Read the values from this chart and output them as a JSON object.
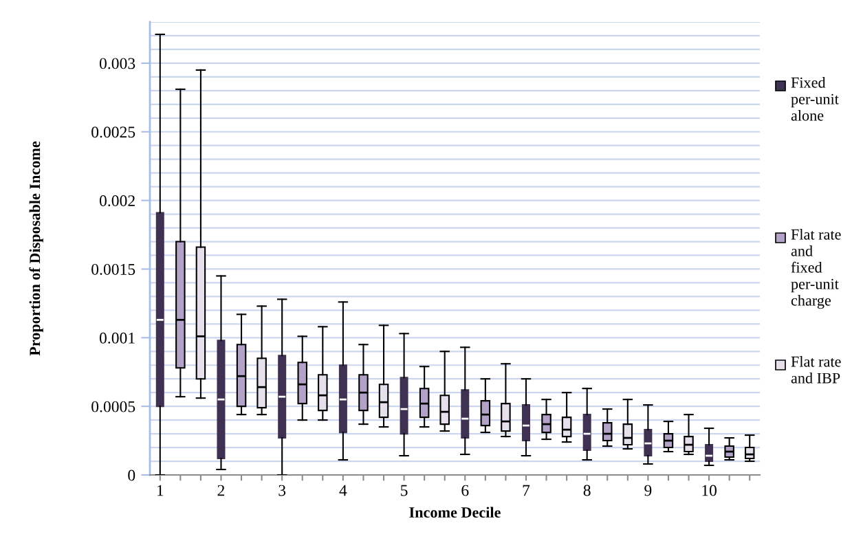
{
  "chart_data": {
    "type": "box",
    "xlabel": "Income Decile",
    "ylabel": "Proportion of Disposable Income",
    "categories": [
      "1",
      null,
      null,
      "2",
      null,
      null,
      "3",
      null,
      null,
      "4",
      null,
      null,
      "5",
      null,
      null,
      "6",
      null,
      null,
      "7",
      null,
      null,
      "8",
      null,
      null,
      "9",
      null,
      null,
      "10",
      null,
      null
    ],
    "series": [
      {
        "name": "Fixed per-unit alone",
        "color": "#3f3151",
        "boxes": [
          {
            "low": 0,
            "q1": 0.0005,
            "median": 0.00113,
            "q3": 0.00191,
            "high": 0.00321
          },
          null,
          null,
          {
            "low": 4e-05,
            "q1": 0.00012,
            "median": 0.00055,
            "q3": 0.00098,
            "high": 0.00145
          },
          null,
          null,
          {
            "low": 0,
            "q1": 0.00027,
            "median": 0.00057,
            "q3": 0.00087,
            "high": 0.00128
          },
          null,
          null,
          {
            "low": 0.00011,
            "q1": 0.00031,
            "median": 0.00055,
            "q3": 0.0008,
            "high": 0.00126
          },
          null,
          null,
          {
            "low": 0.00014,
            "q1": 0.0003,
            "median": 0.00048,
            "q3": 0.00071,
            "high": 0.00103
          },
          null,
          null,
          {
            "low": 0.00015,
            "q1": 0.00027,
            "median": 0.00041,
            "q3": 0.00062,
            "high": 0.00093
          },
          null,
          null,
          {
            "low": 0.00014,
            "q1": 0.00025,
            "median": 0.00036,
            "q3": 0.00051,
            "high": 0.0007
          },
          null,
          null,
          {
            "low": 0.00011,
            "q1": 0.00018,
            "median": 0.0003,
            "q3": 0.00044,
            "high": 0.00063
          },
          null,
          null,
          {
            "low": 8e-05,
            "q1": 0.00014,
            "median": 0.00023,
            "q3": 0.00033,
            "high": 0.00051
          },
          null,
          null,
          {
            "low": 7e-05,
            "q1": 0.0001,
            "median": 0.00014,
            "q3": 0.00022,
            "high": 0.00034
          },
          null,
          null
        ]
      },
      {
        "name": "Flat rate and fixed per-unit charge",
        "color": "#b3a2c7",
        "boxes": [
          null,
          {
            "low": 0.00057,
            "q1": 0.00078,
            "median": 0.00113,
            "q3": 0.0017,
            "high": 0.00281
          },
          null,
          null,
          {
            "low": 0.00044,
            "q1": 0.0005,
            "median": 0.00072,
            "q3": 0.00095,
            "high": 0.00117
          },
          null,
          null,
          {
            "low": 0.0004,
            "q1": 0.00052,
            "median": 0.00066,
            "q3": 0.00082,
            "high": 0.00101
          },
          null,
          null,
          {
            "low": 0.00037,
            "q1": 0.00047,
            "median": 0.0006,
            "q3": 0.00073,
            "high": 0.00095
          },
          null,
          null,
          {
            "low": 0.00035,
            "q1": 0.00042,
            "median": 0.00052,
            "q3": 0.00063,
            "high": 0.00079
          },
          null,
          null,
          {
            "low": 0.00031,
            "q1": 0.00036,
            "median": 0.00044,
            "q3": 0.00054,
            "high": 0.0007
          },
          null,
          null,
          {
            "low": 0.00026,
            "q1": 0.00031,
            "median": 0.00037,
            "q3": 0.00044,
            "high": 0.00055
          },
          null,
          null,
          {
            "low": 0.00021,
            "q1": 0.00025,
            "median": 0.0003,
            "q3": 0.00038,
            "high": 0.00048
          },
          null,
          null,
          {
            "low": 0.00017,
            "q1": 0.0002,
            "median": 0.00025,
            "q3": 0.0003,
            "high": 0.00039
          },
          null,
          null,
          {
            "low": 0.00011,
            "q1": 0.00013,
            "median": 0.00017,
            "q3": 0.00021,
            "high": 0.00027
          },
          null
        ]
      },
      {
        "name": "Flat rate and IBP",
        "color": "#e6e0ec",
        "boxes": [
          null,
          null,
          {
            "low": 0.00056,
            "q1": 0.0007,
            "median": 0.00101,
            "q3": 0.00166,
            "high": 0.00295
          },
          null,
          null,
          {
            "low": 0.00044,
            "q1": 0.00049,
            "median": 0.00064,
            "q3": 0.00085,
            "high": 0.00123
          },
          null,
          null,
          {
            "low": 0.0004,
            "q1": 0.00047,
            "median": 0.00058,
            "q3": 0.00073,
            "high": 0.00108
          },
          null,
          null,
          {
            "low": 0.00035,
            "q1": 0.00042,
            "median": 0.00053,
            "q3": 0.00066,
            "high": 0.00109
          },
          null,
          null,
          {
            "low": 0.00032,
            "q1": 0.00037,
            "median": 0.00046,
            "q3": 0.00058,
            "high": 0.0009
          },
          null,
          null,
          {
            "low": 0.00028,
            "q1": 0.00032,
            "median": 0.00039,
            "q3": 0.00052,
            "high": 0.00081
          },
          null,
          null,
          {
            "low": 0.00024,
            "q1": 0.00028,
            "median": 0.00033,
            "q3": 0.00042,
            "high": 0.0006
          },
          null,
          null,
          {
            "low": 0.00019,
            "q1": 0.00022,
            "median": 0.00027,
            "q3": 0.00037,
            "high": 0.00055
          },
          null,
          null,
          {
            "low": 0.00015,
            "q1": 0.00017,
            "median": 0.00022,
            "q3": 0.00028,
            "high": 0.00044
          },
          null,
          null,
          {
            "low": 0.0001,
            "q1": 0.00012,
            "median": 0.00015,
            "q3": 0.0002,
            "high": 0.00029
          }
        ]
      }
    ],
    "ylim": [
      0,
      0.0033
    ],
    "yticks": [
      0,
      {
        "value": 0.0001,
        "label": null
      },
      {
        "value": 0.0002,
        "label": null
      },
      {
        "value": 0.0003,
        "label": null
      },
      {
        "value": 0.0004,
        "label": null
      },
      0.0005,
      {
        "value": 0.0006,
        "label": null
      },
      {
        "value": 0.0007,
        "label": null
      },
      {
        "value": 0.0008,
        "label": null
      },
      {
        "value": 0.0009,
        "label": null
      },
      0.001,
      {
        "value": 0.0011,
        "label": null
      },
      {
        "value": 0.0012,
        "label": null
      },
      {
        "value": 0.0013,
        "label": null
      },
      {
        "value": 0.0014,
        "label": null
      },
      0.0015,
      {
        "value": 0.0016,
        "label": null
      },
      {
        "value": 0.0017,
        "label": null
      },
      {
        "value": 0.0018,
        "label": null
      },
      {
        "value": 0.0019,
        "label": null
      },
      0.002,
      {
        "value": 0.0021,
        "label": null
      },
      {
        "value": 0.0022,
        "label": null
      },
      {
        "value": 0.0023,
        "label": null
      },
      {
        "value": 0.0024,
        "label": null
      },
      0.0025,
      {
        "value": 0.0026,
        "label": null
      },
      {
        "value": 0.0027,
        "label": null
      },
      {
        "value": 0.0028,
        "label": null
      },
      {
        "value": 0.0029,
        "label": null
      },
      0.003,
      {
        "value": 0.0031,
        "label": null
      },
      {
        "value": 0.0032,
        "label": null
      },
      {
        "value": 0.0033,
        "label": null
      }
    ],
    "grid": "y",
    "legend": "right"
  }
}
